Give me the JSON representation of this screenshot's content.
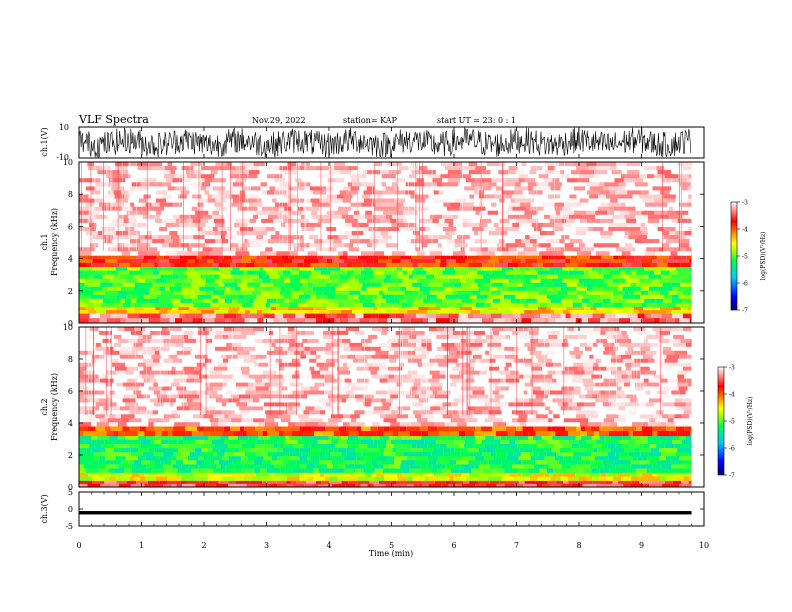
{
  "header": {
    "title": "VLF Spectra",
    "date": "Nov.29, 2022",
    "station": "station= KAP",
    "start": "start  UT =  23: 0  : 1"
  },
  "chart_data": [
    {
      "id": "ch1-waveform",
      "type": "line",
      "ylabel": "ch.1(V)",
      "ylim": [
        -10,
        10
      ],
      "yticks": [
        "10",
        "-10"
      ],
      "xlim": [
        0,
        10
      ],
      "data_extent_min": 9.8,
      "trace": "dense noise trace saturating near full scale, roughly between -8 and 9 V"
    },
    {
      "id": "ch1-spectrogram",
      "type": "heatmap",
      "ylabel": "ch.1\nFrequency  (kHz)",
      "ylim": [
        0,
        10
      ],
      "yticks": [
        "0",
        "2",
        "4",
        "6",
        "8",
        "10"
      ],
      "xlim": [
        0,
        10
      ],
      "data_extent_min": 9.8,
      "band_kHz": [
        {
          "from": 0,
          "to": 0.6,
          "level": -3.4
        },
        {
          "from": 0.6,
          "to": 1.0,
          "level": -4.4
        },
        {
          "from": 1.0,
          "to": 3.5,
          "level": -5.0
        },
        {
          "from": 3.5,
          "to": 4.2,
          "level": -3.8
        },
        {
          "from": 4.2,
          "to": 10,
          "level": -3.1
        }
      ],
      "colorbar": {
        "min": -7,
        "max": -3,
        "ticks": [
          "-3",
          "-4",
          "-5",
          "-6",
          "-7"
        ],
        "label": "log(PSD)(V²/Hz)"
      }
    },
    {
      "id": "ch2-spectrogram",
      "type": "heatmap",
      "ylabel": "ch.2\nFrequency  (kHz)",
      "ylim": [
        0,
        10
      ],
      "yticks": [
        "0",
        "2",
        "4",
        "6",
        "8",
        "10"
      ],
      "xlim": [
        0,
        10
      ],
      "data_extent_min": 9.8,
      "band_kHz": [
        {
          "from": 0,
          "to": 0.4,
          "level": -3.6
        },
        {
          "from": 0.4,
          "to": 0.9,
          "level": -4.6
        },
        {
          "from": 0.9,
          "to": 3.2,
          "level": -5.2
        },
        {
          "from": 3.2,
          "to": 3.8,
          "level": -4.0
        },
        {
          "from": 3.8,
          "to": 10,
          "level": -3.1
        }
      ],
      "colorbar": {
        "min": -7,
        "max": -3,
        "ticks": [
          "-3",
          "-4",
          "-5",
          "-6",
          "-7"
        ],
        "label": "log(PSD)(V²/Hz)"
      }
    },
    {
      "id": "ch3-waveform",
      "type": "line",
      "ylabel": "ch.3(V)",
      "ylim": [
        -5,
        5
      ],
      "yticks": [
        "5",
        "0",
        "-5"
      ],
      "xlim": [
        0,
        10
      ],
      "data_extent_min": 9.8,
      "trace": "narrow band around -1.0 V"
    }
  ],
  "xaxis": {
    "label": "Time  (min)",
    "ticks": [
      "0",
      "1",
      "2",
      "3",
      "4",
      "5",
      "6",
      "7",
      "8",
      "9",
      "10"
    ]
  },
  "colors": {
    "trace": "#000000",
    "colormap": [
      "#000080",
      "#0000ff",
      "#00c8ff",
      "#00ff60",
      "#aaff00",
      "#ffff00",
      "#ff8000",
      "#ff0000",
      "#ffffff"
    ]
  }
}
